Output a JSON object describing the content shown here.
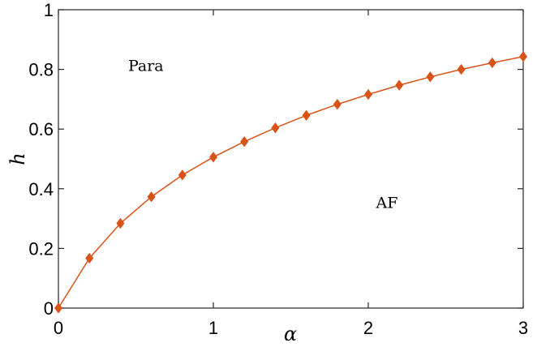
{
  "chart_data": {
    "type": "line",
    "title": "",
    "xlabel": "α",
    "ylabel": "h",
    "xlim": [
      0,
      3
    ],
    "ylim": [
      0,
      1
    ],
    "xticks": [
      "0",
      "1",
      "2",
      "3"
    ],
    "yticks": [
      "0",
      "0.2",
      "0.4",
      "0.6",
      "0.8",
      "1"
    ],
    "grid": false,
    "legend": "none",
    "series": [
      {
        "color": "#d95319",
        "marker": "diamond",
        "x": [
          0,
          0.2,
          0.4,
          0.6,
          0.8,
          1.0,
          1.2,
          1.4,
          1.6,
          1.8,
          2.0,
          2.2,
          2.4,
          2.6,
          2.8,
          3.0
        ],
        "y": [
          0,
          0.167,
          0.284,
          0.373,
          0.446,
          0.506,
          0.558,
          0.604,
          0.646,
          0.683,
          0.716,
          0.747,
          0.775,
          0.8,
          0.822,
          0.843
        ]
      }
    ],
    "annotations": [
      {
        "text": "Para",
        "x": 0.45,
        "y": 0.795
      },
      {
        "text": "AF",
        "x": 2.05,
        "y": 0.335
      }
    ]
  }
}
